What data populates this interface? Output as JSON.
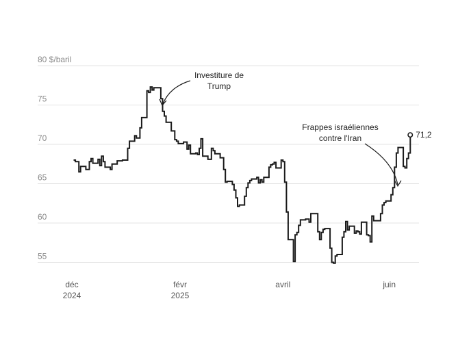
{
  "chart_data": {
    "type": "line",
    "step": true,
    "title": "",
    "ylabel": "",
    "y_unit_label": "80 $/baril",
    "ylim": [
      54,
      80
    ],
    "yticks": [
      {
        "value": 80,
        "label": "80 $/baril"
      },
      {
        "value": 75,
        "label": "75"
      },
      {
        "value": 70,
        "label": "70"
      },
      {
        "value": 65,
        "label": "65"
      },
      {
        "value": 60,
        "label": "60"
      },
      {
        "value": 55,
        "label": "55"
      }
    ],
    "xlim": [
      "2024-12-01",
      "2025-06-18"
    ],
    "xticks": [
      {
        "date": "2024-12-01",
        "line1": "déc",
        "line2": "2024"
      },
      {
        "date": "2025-02-01",
        "line1": "févr",
        "line2": "2025"
      },
      {
        "date": "2025-04-01",
        "line1": "avril",
        "line2": ""
      },
      {
        "date": "2025-06-01",
        "line1": "juin",
        "line2": ""
      }
    ],
    "grid": true,
    "series": [
      {
        "name": "",
        "x": [
          "2024-12-02",
          "2024-12-03",
          "2024-12-05",
          "2024-12-06",
          "2024-12-09",
          "2024-12-11",
          "2024-12-12",
          "2024-12-13",
          "2024-12-16",
          "2024-12-17",
          "2024-12-18",
          "2024-12-19",
          "2024-12-20",
          "2024-12-23",
          "2024-12-24",
          "2024-12-27",
          "2024-12-30",
          "2025-01-02",
          "2025-01-03",
          "2025-01-06",
          "2025-01-07",
          "2025-01-09",
          "2025-01-10",
          "2025-01-13",
          "2025-01-14",
          "2025-01-15",
          "2025-01-16",
          "2025-01-17",
          "2025-01-21",
          "2025-01-22",
          "2025-01-23",
          "2025-01-24",
          "2025-01-27",
          "2025-01-29",
          "2025-01-30",
          "2025-01-31",
          "2025-02-03",
          "2025-02-05",
          "2025-02-06",
          "2025-02-07",
          "2025-02-10",
          "2025-02-11",
          "2025-02-12",
          "2025-02-13",
          "2025-02-14",
          "2025-02-17",
          "2025-02-19",
          "2025-02-20",
          "2025-02-21",
          "2025-02-24",
          "2025-02-26",
          "2025-02-27",
          "2025-02-28",
          "2025-03-03",
          "2025-03-04",
          "2025-03-05",
          "2025-03-06",
          "2025-03-07",
          "2025-03-10",
          "2025-03-11",
          "2025-03-12",
          "2025-03-13",
          "2025-03-14",
          "2025-03-17",
          "2025-03-18",
          "2025-03-19",
          "2025-03-20",
          "2025-03-21",
          "2025-03-24",
          "2025-03-25",
          "2025-03-26",
          "2025-03-27",
          "2025-03-28",
          "2025-03-31",
          "2025-04-01",
          "2025-04-02",
          "2025-04-03",
          "2025-04-04",
          "2025-04-07",
          "2025-04-08",
          "2025-04-09",
          "2025-04-10",
          "2025-04-11",
          "2025-04-14",
          "2025-04-16",
          "2025-04-17",
          "2025-04-21",
          "2025-04-22",
          "2025-04-23",
          "2025-04-24",
          "2025-04-25",
          "2025-04-28",
          "2025-04-29",
          "2025-04-30",
          "2025-05-01",
          "2025-05-02",
          "2025-05-05",
          "2025-05-06",
          "2025-05-07",
          "2025-05-08",
          "2025-05-09",
          "2025-05-12",
          "2025-05-13",
          "2025-05-14",
          "2025-05-15",
          "2025-05-16",
          "2025-05-19",
          "2025-05-20",
          "2025-05-21",
          "2025-05-22",
          "2025-05-23",
          "2025-05-27",
          "2025-05-28",
          "2025-05-29",
          "2025-05-30",
          "2025-06-02",
          "2025-06-03",
          "2025-06-04",
          "2025-06-05",
          "2025-06-06",
          "2025-06-09",
          "2025-06-10",
          "2025-06-11",
          "2025-06-12",
          "2025-06-13"
        ],
        "y": [
          68.0,
          67.8,
          66.5,
          67.2,
          66.8,
          67.8,
          68.2,
          67.6,
          68.1,
          67.3,
          68.5,
          67.8,
          67.1,
          66.8,
          67.5,
          67.9,
          68.0,
          69.5,
          70.4,
          71.1,
          70.8,
          72.1,
          73.4,
          76.8,
          76.6,
          77.3,
          76.9,
          77.2,
          75.8,
          74.2,
          73.6,
          72.8,
          71.7,
          70.6,
          70.4,
          70.1,
          70.3,
          69.4,
          69.9,
          68.8,
          68.9,
          68.7,
          69.5,
          70.7,
          68.5,
          68.1,
          69.5,
          69.2,
          68.8,
          68.3,
          66.8,
          65.2,
          65.3,
          64.9,
          64.2,
          63.2,
          62.1,
          62.3,
          63.4,
          64.5,
          65.1,
          65.4,
          65.6,
          65.8,
          65.1,
          65.5,
          65.2,
          65.8,
          67.1,
          67.4,
          67.5,
          67.7,
          67.0,
          68.0,
          67.8,
          65.2,
          61.4,
          57.9,
          55.1,
          58.5,
          58.8,
          59.7,
          60.4,
          60.5,
          60.1,
          61.2,
          58.9,
          57.9,
          58.8,
          59.2,
          59.3,
          56.8,
          55.0,
          54.9,
          55.8,
          56.0,
          58.2,
          58.9,
          60.2,
          59.1,
          59.6,
          58.7,
          59.0,
          58.9,
          58.6,
          60.1,
          58.5,
          58.4,
          57.6,
          60.9,
          60.3,
          61.2,
          62.3,
          62.6,
          62.8,
          63.6,
          64.5,
          67.1,
          68.9,
          69.6,
          67.2,
          67.0,
          68.2,
          68.9,
          71.2
        ]
      }
    ],
    "last_value_label": "71,2",
    "annotations": [
      {
        "name": "trump",
        "lines": [
          "Investiture de",
          "Trump"
        ],
        "date": "2025-01-20"
      },
      {
        "name": "iran",
        "lines": [
          "Frappes israéliennes",
          "contre l'Iran"
        ],
        "date": "2025-06-13"
      }
    ]
  }
}
